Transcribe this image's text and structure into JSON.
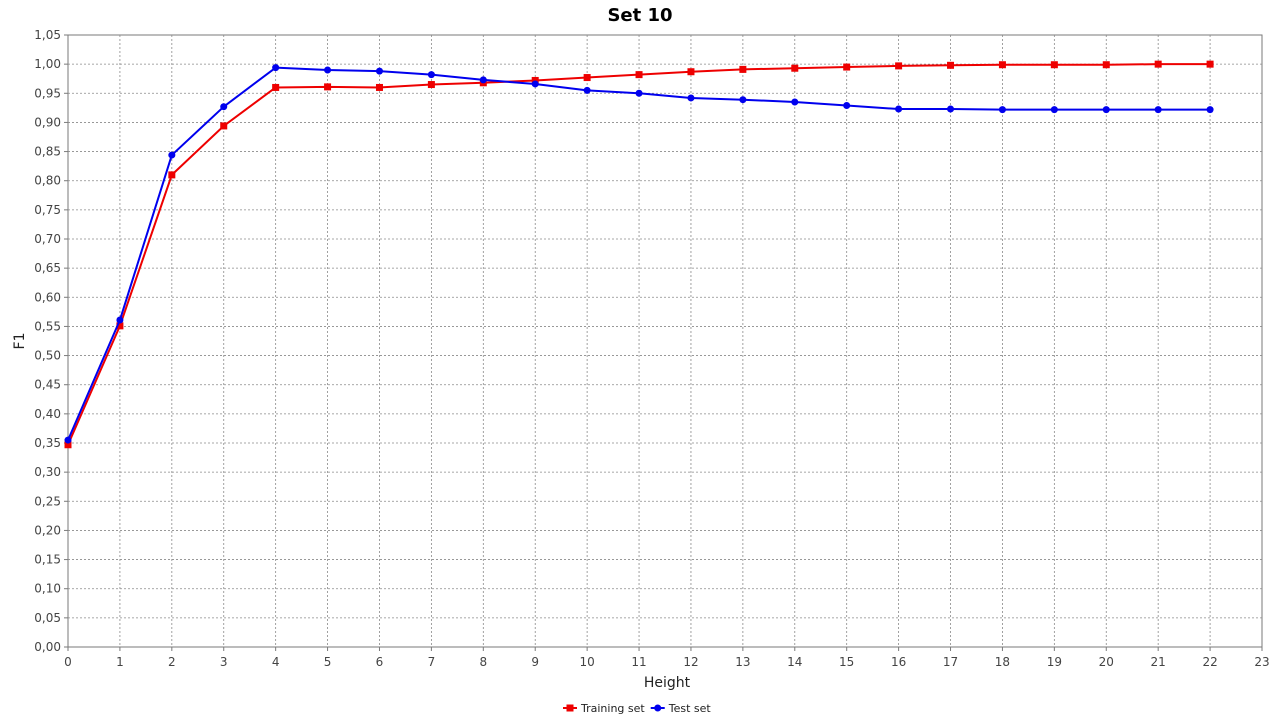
{
  "chart_data": {
    "type": "line",
    "title": "Set 10",
    "xlabel": "Height",
    "ylabel": "F1",
    "xlim": [
      0,
      23
    ],
    "ylim": [
      0,
      1.05
    ],
    "x_ticks": [
      "0",
      "1",
      "2",
      "3",
      "4",
      "5",
      "6",
      "7",
      "8",
      "9",
      "10",
      "11",
      "12",
      "13",
      "14",
      "15",
      "16",
      "17",
      "18",
      "19",
      "20",
      "21",
      "22",
      "23"
    ],
    "y_ticks": [
      "0,00",
      "0,05",
      "0,10",
      "0,15",
      "0,20",
      "0,25",
      "0,30",
      "0,35",
      "0,40",
      "0,45",
      "0,50",
      "0,55",
      "0,60",
      "0,65",
      "0,70",
      "0,75",
      "0,80",
      "0,85",
      "0,90",
      "0,95",
      "1,00",
      "1,05"
    ],
    "grid": true,
    "legend_position": "bottom-center",
    "x": [
      0,
      1,
      2,
      3,
      4,
      5,
      6,
      7,
      8,
      9,
      10,
      11,
      12,
      13,
      14,
      15,
      16,
      17,
      18,
      19,
      20,
      21,
      22
    ],
    "series": [
      {
        "name": "Training set",
        "color": "#ee0000",
        "marker": "square",
        "values": [
          0.347,
          0.551,
          0.81,
          0.894,
          0.96,
          0.961,
          0.96,
          0.965,
          0.968,
          0.972,
          0.977,
          0.982,
          0.987,
          0.991,
          0.993,
          0.995,
          0.997,
          0.998,
          0.999,
          0.999,
          0.999,
          1.0,
          1.0
        ]
      },
      {
        "name": "Test set",
        "color": "#0000ee",
        "marker": "circle",
        "values": [
          0.355,
          0.561,
          0.844,
          0.927,
          0.994,
          0.99,
          0.988,
          0.982,
          0.973,
          0.966,
          0.955,
          0.95,
          0.942,
          0.939,
          0.935,
          0.929,
          0.923,
          0.923,
          0.922,
          0.922,
          0.922,
          0.922,
          0.922
        ]
      }
    ]
  }
}
